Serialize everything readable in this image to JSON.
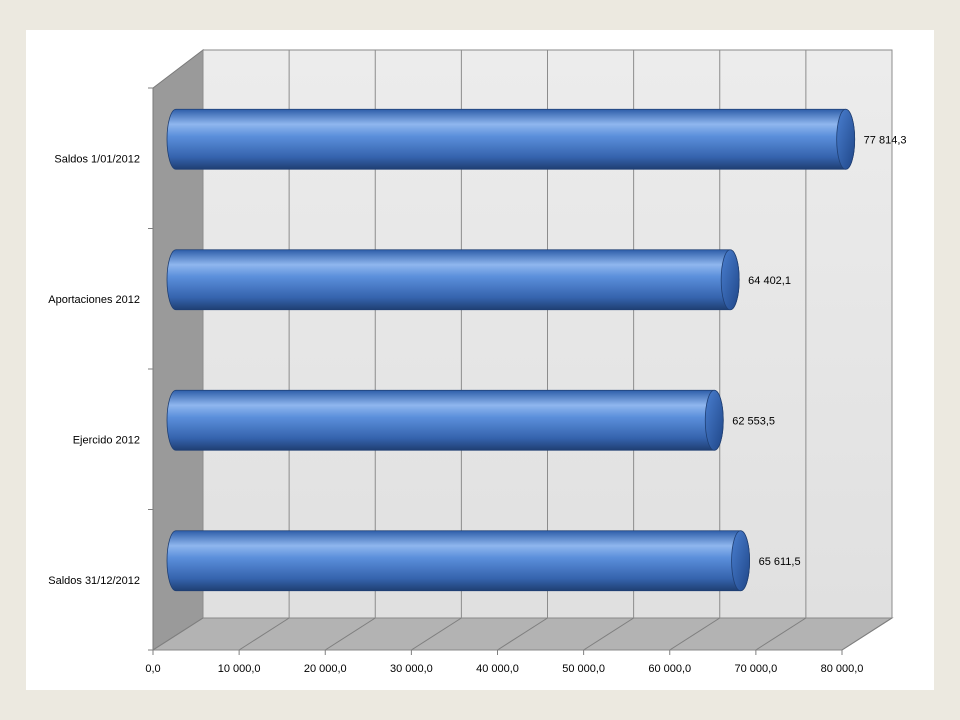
{
  "chart_data": {
    "type": "bar",
    "orientation": "horizontal",
    "style": "3d-cylinder",
    "categories": [
      "Saldos  1/01/2012",
      "Aportaciones 2012",
      "Ejercido 2012",
      "Saldos  31/12/2012"
    ],
    "values": [
      77814.3,
      64402.1,
      62553.5,
      65611.5
    ],
    "value_labels": [
      "77 814,3",
      "64 402,1",
      "62 553,5",
      "65 611,5"
    ],
    "x_ticks": [
      "0,0",
      "10 000,0",
      "20 000,0",
      "30 000,0",
      "40 000,0",
      "50 000,0",
      "60 000,0",
      "70 000,0",
      "80 000,0"
    ],
    "xlim": [
      0,
      80000
    ],
    "title": "",
    "xlabel": "",
    "ylabel": "",
    "grid": true,
    "legend": "none",
    "colors": {
      "bar": "#3f74c4",
      "bar_highlight": "#8fb6ee",
      "bar_shadow": "#1f3f73",
      "back_wall": "#e6e6e6",
      "side_wall": "#9a9a9a",
      "floor": "#b3b3b3"
    }
  }
}
